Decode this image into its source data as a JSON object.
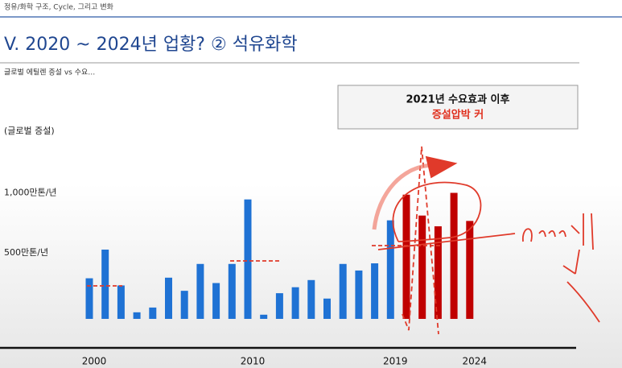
{
  "breadcrumb": "정유/화학 구조, Cycle, 그리고 변화",
  "chart_data": {
    "type": "bar",
    "title": "V. 2020 ~ 2024년 업황? ② 석유화학",
    "subtitle": "글로벌 에틸렌 증설 vs 수요…",
    "y_label": "(글로벌 증설)",
    "annotation": {
      "line1": "2021년 수요효과 이후",
      "line2": "증설압박 커"
    },
    "categories": [
      "2000",
      null,
      null,
      null,
      null,
      null,
      null,
      null,
      null,
      null,
      "2010",
      null,
      null,
      null,
      null,
      null,
      null,
      null,
      null,
      "2019",
      null,
      null,
      null,
      null,
      "2024"
    ],
    "series": [
      {
        "color": "#1f72d4",
        "values": [
          340,
          580,
          280,
          55,
          95,
          345,
          235,
          460,
          300,
          460,
          1000,
          35,
          215,
          265,
          325,
          170,
          460,
          405,
          465,
          825,
          null,
          null,
          null,
          null,
          null
        ]
      },
      {
        "color": "#c00000",
        "values": [
          null,
          null,
          null,
          null,
          null,
          null,
          null,
          null,
          null,
          null,
          null,
          null,
          null,
          null,
          null,
          null,
          null,
          null,
          null,
          null,
          1040,
          865,
          775,
          1055,
          820
        ]
      }
    ],
    "ylim": [
      0,
      1200
    ],
    "yticks": [
      {
        "value": 500,
        "label": "500만톤/년"
      },
      {
        "value": 1000,
        "label": "1,000만톤/년"
      }
    ],
    "grid": false
  }
}
